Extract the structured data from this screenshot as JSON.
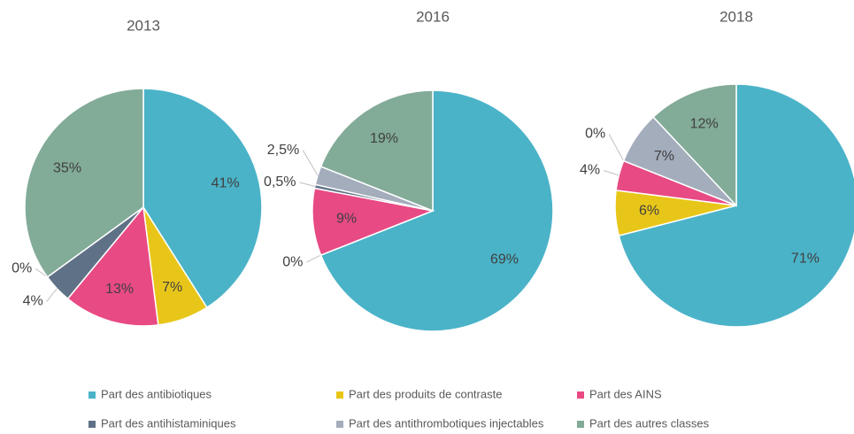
{
  "chart_data": [
    {
      "type": "pie",
      "title": "2013",
      "values": [
        41,
        7,
        13,
        4,
        0,
        35
      ],
      "value_labels": [
        "41%",
        "7%",
        "13%",
        "4%",
        "0%",
        "35%"
      ]
    },
    {
      "type": "pie",
      "title": "2016",
      "values": [
        69,
        0,
        9,
        0.5,
        2.5,
        19
      ],
      "value_labels": [
        "69%",
        "0%",
        "9%",
        "0,5%",
        "2,5%",
        "19%"
      ]
    },
    {
      "type": "pie",
      "title": "2018",
      "values": [
        71,
        6,
        4,
        0,
        7,
        12
      ],
      "value_labels": [
        "71%",
        "6%",
        "4%",
        "0%",
        "7%",
        "12%"
      ]
    }
  ],
  "legend": {
    "categories": [
      "Part des antibiotiques",
      "Part des produits de contraste",
      "Part des AINS",
      "Part des antihistaminiques",
      "Part des antithrombotiques injectables",
      "Part des autres classes"
    ],
    "colors": [
      "#4bb3c8",
      "#e8c619",
      "#e84a84",
      "#5f7186",
      "#a3adbc",
      "#82ab98"
    ]
  }
}
